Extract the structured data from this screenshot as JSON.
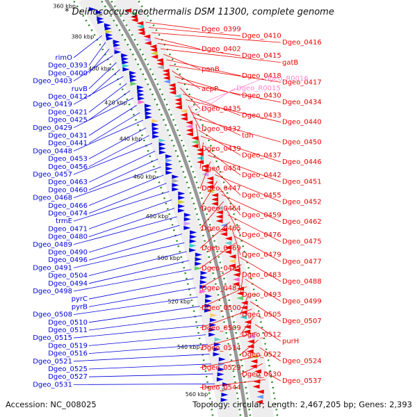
{
  "title": "* Deinococcus geothermalis DSM 11300, complete genome",
  "footer": {
    "accession": "Accession: NC_008025",
    "summary": "Topology: circular; Length: 2,467,205 bp; Genes: 2,393"
  },
  "colors": {
    "forward": "#0000dd",
    "reverse": "#ee0000",
    "rna": "#ff88cc",
    "backbone": "#999999",
    "tick": "#228822"
  },
  "scale_ticks": [
    "360 kbp",
    "380 kbp",
    "400 kbp",
    "420 kbp",
    "440 kbp",
    "460 kbp",
    "480 kbp",
    "500 kbp",
    "520 kbp",
    "540 kbp",
    "560 kbp"
  ],
  "left_labels": [
    "rimO",
    "Dgeo_0393",
    "Dgeo_0400",
    "Dgeo_0403",
    "ruvB",
    "Dgeo_0412",
    "Dgeo_0419",
    "Dgeo_0421",
    "Dgeo_0425",
    "Dgeo_0429",
    "Dgeo_0431",
    "Dgeo_0441",
    "Dgeo_0448",
    "Dgeo_0453",
    "Dgeo_0456",
    "Dgeo_0457",
    "Dgeo_0463",
    "Dgeo_0460",
    "Dgeo_0468",
    "Dgeo_0466",
    "Dgeo_0474",
    "trmE",
    "Dgeo_0471",
    "Dgeo_0480",
    "Dgeo_0489",
    "Dgeo_0490",
    "Dgeo_0496",
    "Dgeo_0491",
    "Dgeo_0504",
    "Dgeo_0494",
    "Dgeo_0498",
    "pyrC",
    "pyrB",
    "Dgeo_0508",
    "Dgeo_0510",
    "Dgeo_0511",
    "Dgeo_0515",
    "Dgeo_0519",
    "Dgeo_0516",
    "Dgeo_0521",
    "Dgeo_0525",
    "Dgeo_0527",
    "Dgeo_0531"
  ],
  "right_labels": [
    "Dgeo_0399",
    "Dgeo_0410",
    "Dgeo_0416",
    "Dgeo_0402",
    "Dgeo_0415",
    "gatB",
    "panB",
    "Dgeo_0418",
    "Dgeo_0417",
    "acpP",
    "Dgeo_0430",
    "Dgeo_0434",
    "Dgeo_0435",
    "Dgeo_0433",
    "Dgeo_0440",
    "Dgeo_0432",
    "tdh",
    "Dgeo_0450",
    "Dgeo_0439",
    "Dgeo_0437",
    "Dgeo_0446",
    "Dgeo_0454",
    "Dgeo_0442",
    "Dgeo_0451",
    "Dgeo_0447",
    "Dgeo_0455",
    "Dgeo_0452",
    "Dgeo_0464",
    "Dgeo_0459",
    "Dgeo_0462",
    "Dgeo_0465",
    "Dgeo_0476",
    "Dgeo_0475",
    "Dgeo_0469",
    "Dgeo_0479",
    "Dgeo_0477",
    "Dgeo_0485",
    "Dgeo_0483",
    "Dgeo_0488",
    "Dgeo_0487",
    "Dgeo_0493",
    "Dgeo_0499",
    "Dgeo_0500",
    "Dgeo_0505",
    "Dgeo_0507",
    "Dgeo_0509",
    "Dgeo_0512",
    "purH",
    "Dgeo_0514",
    "Dgeo_0522",
    "Dgeo_0524",
    "Dgeo_0529",
    "Dgeo_0530",
    "Dgeo_0537",
    "Dgeo_0544"
  ],
  "rna_labels": [
    "Dgeo_R0016",
    "Dgeo_R0015"
  ]
}
